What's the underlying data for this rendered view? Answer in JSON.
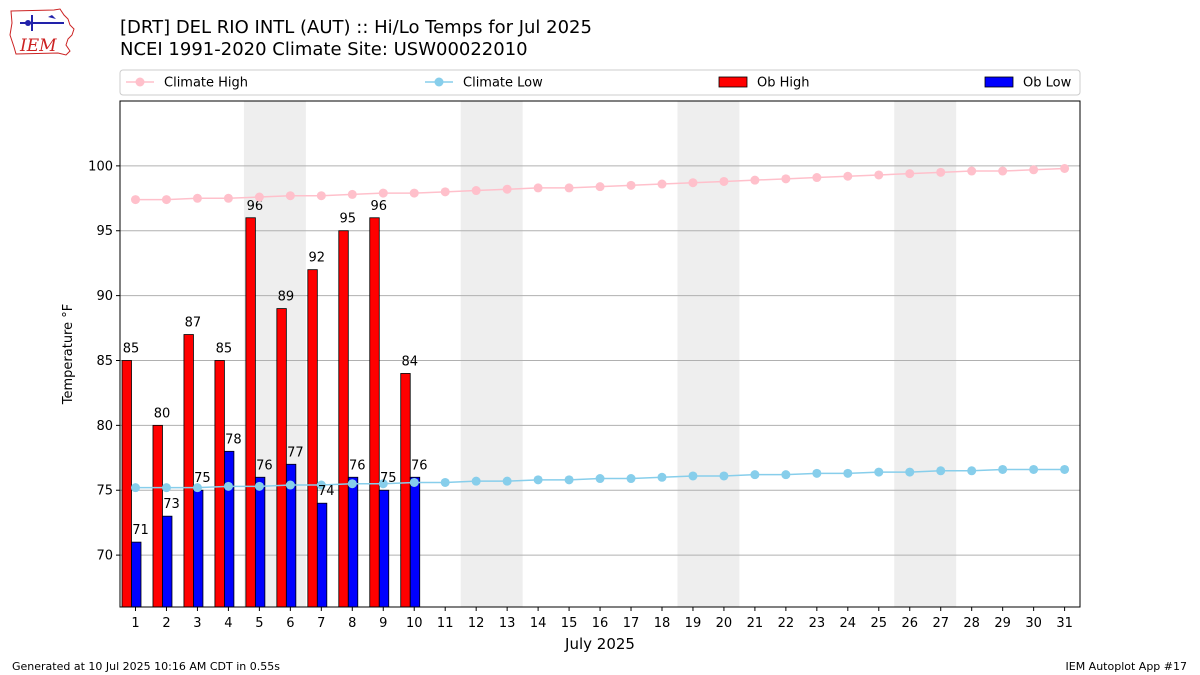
{
  "header": {
    "title_line1": "[DRT] DEL RIO INTL (AUT) :: Hi/Lo Temps for Jul 2025",
    "title_line2": "NCEI 1991-2020 Climate Site: USW00022010",
    "logo_text": "IEM"
  },
  "footer": {
    "generated": "Generated at 10 Jul 2025 10:16 AM CDT in 0.55s",
    "app": "IEM Autoplot App #17"
  },
  "colors": {
    "climate_high": "#ffc0cb",
    "climate_low": "#87ceeb",
    "ob_high": "#ff0000",
    "ob_low": "#0000ff",
    "weekend_shade": "#eeeeee",
    "grid": "#b0b0b0"
  },
  "chart_data": {
    "type": "bar",
    "xlabel": "July 2025",
    "ylabel": "Temperature °F",
    "ylim": [
      66,
      105
    ],
    "yticks": [
      70,
      75,
      80,
      85,
      90,
      95,
      100
    ],
    "grid": "horizontal",
    "legend_position": "top",
    "legend": [
      "Climate High",
      "Climate Low",
      "Ob High",
      "Ob Low"
    ],
    "days": [
      1,
      2,
      3,
      4,
      5,
      6,
      7,
      8,
      9,
      10,
      11,
      12,
      13,
      14,
      15,
      16,
      17,
      18,
      19,
      20,
      21,
      22,
      23,
      24,
      25,
      26,
      27,
      28,
      29,
      30,
      31
    ],
    "shaded_weekends": [
      [
        5,
        6
      ],
      [
        12,
        13
      ],
      [
        19,
        20
      ],
      [
        26,
        27
      ]
    ],
    "series": [
      {
        "name": "Ob High",
        "kind": "bar",
        "values": [
          85,
          80,
          87,
          85,
          96,
          89,
          92,
          95,
          96,
          84
        ]
      },
      {
        "name": "Ob Low",
        "kind": "bar",
        "values": [
          71,
          73,
          75,
          78,
          76,
          77,
          74,
          76,
          75,
          76
        ]
      },
      {
        "name": "Climate High",
        "kind": "line",
        "values": [
          97.4,
          97.4,
          97.5,
          97.5,
          97.6,
          97.7,
          97.7,
          97.8,
          97.9,
          97.9,
          98.0,
          98.1,
          98.2,
          98.3,
          98.3,
          98.4,
          98.5,
          98.6,
          98.7,
          98.8,
          98.9,
          99.0,
          99.1,
          99.2,
          99.3,
          99.4,
          99.5,
          99.6,
          99.6,
          99.7,
          99.8
        ]
      },
      {
        "name": "Climate Low",
        "kind": "line",
        "values": [
          75.2,
          75.2,
          75.2,
          75.3,
          75.3,
          75.4,
          75.4,
          75.5,
          75.5,
          75.6,
          75.6,
          75.7,
          75.7,
          75.8,
          75.8,
          75.9,
          75.9,
          76.0,
          76.1,
          76.1,
          76.2,
          76.2,
          76.3,
          76.3,
          76.4,
          76.4,
          76.5,
          76.5,
          76.6,
          76.6,
          76.6
        ]
      }
    ]
  }
}
